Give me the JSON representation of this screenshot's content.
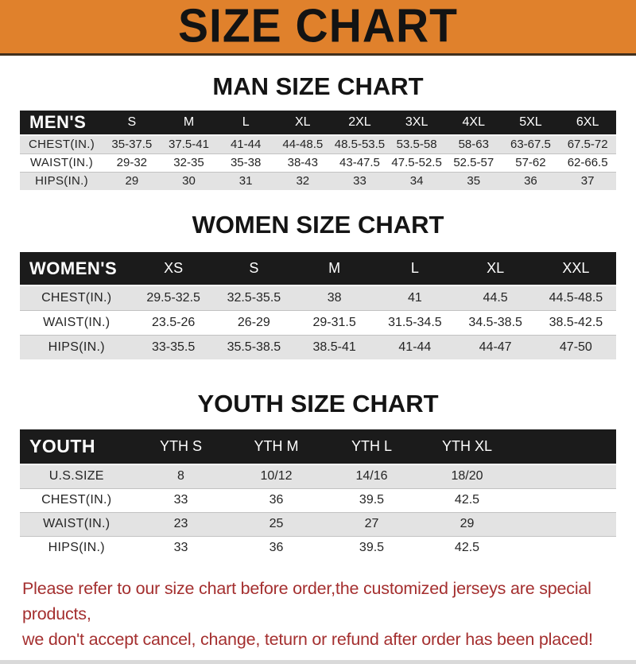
{
  "banner": {
    "title": "SIZE CHART",
    "background_color": "#e0812c",
    "text_color": "#131313"
  },
  "sections": [
    {
      "id": "men",
      "title": "MAN SIZE CHART",
      "table": {
        "header_label": "MEN'S",
        "size_columns": [
          "S",
          "M",
          "L",
          "XL",
          "2XL",
          "3XL",
          "4XL",
          "5XL",
          "6XL"
        ],
        "rows": [
          {
            "label": "CHEST(IN.)",
            "values": [
              "35-37.5",
              "37.5-41",
              "41-44",
              "44-48.5",
              "48.5-53.5",
              "53.5-58",
              "58-63",
              "63-67.5",
              "67.5-72"
            ]
          },
          {
            "label": "WAIST(IN.)",
            "values": [
              "29-32",
              "32-35",
              "35-38",
              "38-43",
              "43-47.5",
              "47.5-52.5",
              "52.5-57",
              "57-62",
              "62-66.5"
            ]
          },
          {
            "label": "HIPS(IN.)",
            "values": [
              "29",
              "30",
              "31",
              "32",
              "33",
              "34",
              "35",
              "36",
              "37"
            ]
          }
        ]
      }
    },
    {
      "id": "women",
      "title": "WOMEN SIZE CHART",
      "table": {
        "header_label": "WOMEN'S",
        "size_columns": [
          "XS",
          "S",
          "M",
          "L",
          "XL",
          "XXL"
        ],
        "rows": [
          {
            "label": "CHEST(IN.)",
            "values": [
              "29.5-32.5",
              "32.5-35.5",
              "38",
              "41",
              "44.5",
              "44.5-48.5"
            ]
          },
          {
            "label": "WAIST(IN.)",
            "values": [
              "23.5-26",
              "26-29",
              "29-31.5",
              "31.5-34.5",
              "34.5-38.5",
              "38.5-42.5"
            ]
          },
          {
            "label": "HIPS(IN.)",
            "values": [
              "33-35.5",
              "35.5-38.5",
              "38.5-41",
              "41-44",
              "44-47",
              "47-50"
            ]
          }
        ]
      }
    },
    {
      "id": "youth",
      "title": "YOUTH SIZE CHART",
      "table": {
        "header_label": "YOUTH",
        "size_columns": [
          "YTH S",
          "YTH M",
          "YTH L",
          "YTH XL"
        ],
        "trailing_filler": true,
        "rows": [
          {
            "label": "U.S.SIZE",
            "values": [
              "8",
              "10/12",
              "14/16",
              "18/20"
            ]
          },
          {
            "label": "CHEST(IN.)",
            "values": [
              "33",
              "36",
              "39.5",
              "42.5"
            ]
          },
          {
            "label": "WAIST(IN.)",
            "values": [
              "23",
              "25",
              "27",
              "29"
            ]
          },
          {
            "label": "HIPS(IN.)",
            "values": [
              "33",
              "36",
              "39.5",
              "42.5"
            ]
          }
        ]
      }
    }
  ],
  "footer": {
    "lines": [
      "Please refer to our size chart before order,the customized jerseys are special products,",
      "we don't accept cancel, change, teturn or refund after order has been placed!"
    ],
    "text_color": "#a42f2f"
  },
  "table_colors": {
    "header_bar": "#1b1b1b",
    "header_text": "#ffffff",
    "alt_row": "#e3e3e3"
  }
}
